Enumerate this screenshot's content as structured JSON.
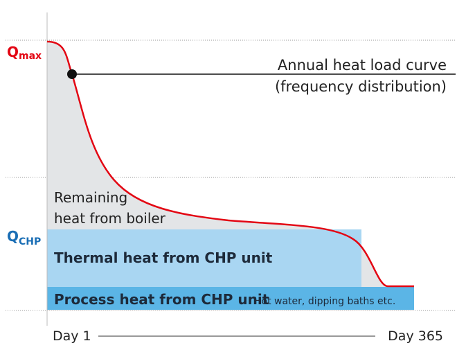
{
  "labels": {
    "q_max": {
      "symbol": "Q",
      "subscript": "max"
    },
    "q_chp": {
      "symbol": "Q",
      "subscript": "CHP"
    },
    "curve_title": [
      "Annual heat load curve",
      "(frequency distribution)"
    ],
    "remaining": [
      "Remaining",
      "heat from boiler"
    ],
    "thermal": "Thermal heat from CHP unit",
    "process": "Process heat from CHP unit",
    "process_note": "Hot water, dipping baths etc.",
    "day_start": "Day 1",
    "day_end": "Day 365"
  }
}
